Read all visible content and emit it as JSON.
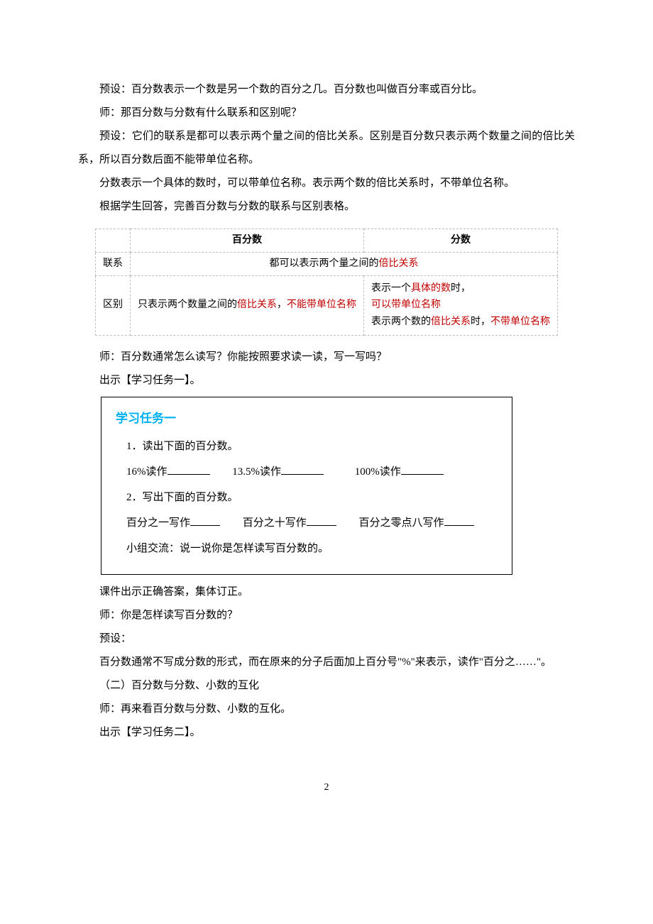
{
  "colors": {
    "red": "#c00000",
    "task_title": "#00b0f0",
    "table_border": "#bfbfbf",
    "text": "#000000",
    "bg": "#ffffff"
  },
  "paras": {
    "p1": "预设：百分数表示一个数是另一个数的百分之几。百分数也叫做百分率或百分比。",
    "p2": "师：那百分数与分数有什么联系和区别呢？",
    "p3": "预设：它们的联系是都可以表示两个量之间的倍比关系。区别是百分数只表示两个数量之间的倍比关系，所以百分数后面不能带单位名称。",
    "p4": "分数表示一个具体的数时，可以带单位名称。表示两个数的倍比关系时，不带单位名称。",
    "p5": "根据学生回答，完善百分数与分数的联系与区别表格。",
    "p6": "师：百分数通常怎么读写？你能按照要求读一读，写一写吗？",
    "p7": "出示【学习任务一】。",
    "p8": "课件出示正确答案，集体订正。",
    "p9": "师：你是怎样读写百分数的？",
    "p10": "预设：",
    "p11": "百分数通常不写成分数的形式，而在原来的分子后面加上百分号\"%\"来表示，读作\"百分之……\"。",
    "p12": "（二）百分数与分数、小数的互化",
    "p13": "师：再来看百分数与分数、小数的互化。",
    "p14": "出示【学习任务二】。"
  },
  "table": {
    "header": {
      "c1": "百分数",
      "c2": "分数"
    },
    "row1_label": "联系",
    "row1_text_a": "都可以表示两个量之间的",
    "row1_text_b": "倍比关系",
    "row2_label": "区别",
    "row2_c1_a": "只表示两个数量之间的",
    "row2_c1_b": "倍比关系",
    "row2_c1_c": "，",
    "row2_c1_d": "不能带单位名称",
    "row2_c2_a": "表示一个",
    "row2_c2_b": "具体的数",
    "row2_c2_c": "时，",
    "row2_c2_d": "可以带单位名称",
    "row2_c2_e": "表示两个数的",
    "row2_c2_f": "倍比关系",
    "row2_c2_g": "时，",
    "row2_c2_h": "不带单位名称"
  },
  "task": {
    "title": "学习任务一",
    "item1": "1．读出下面的百分数。",
    "q1a": "16%读作",
    "q1b": "13.5%读作",
    "q1c": "100%读作",
    "item2": "2．写出下面的百分数。",
    "q2a": "百分之一写作",
    "q2b": "百分之十写作",
    "q2c": "百分之零点八写作",
    "footer": "小组交流：说一说你是怎样读写百分数的。"
  },
  "page_number": "2"
}
